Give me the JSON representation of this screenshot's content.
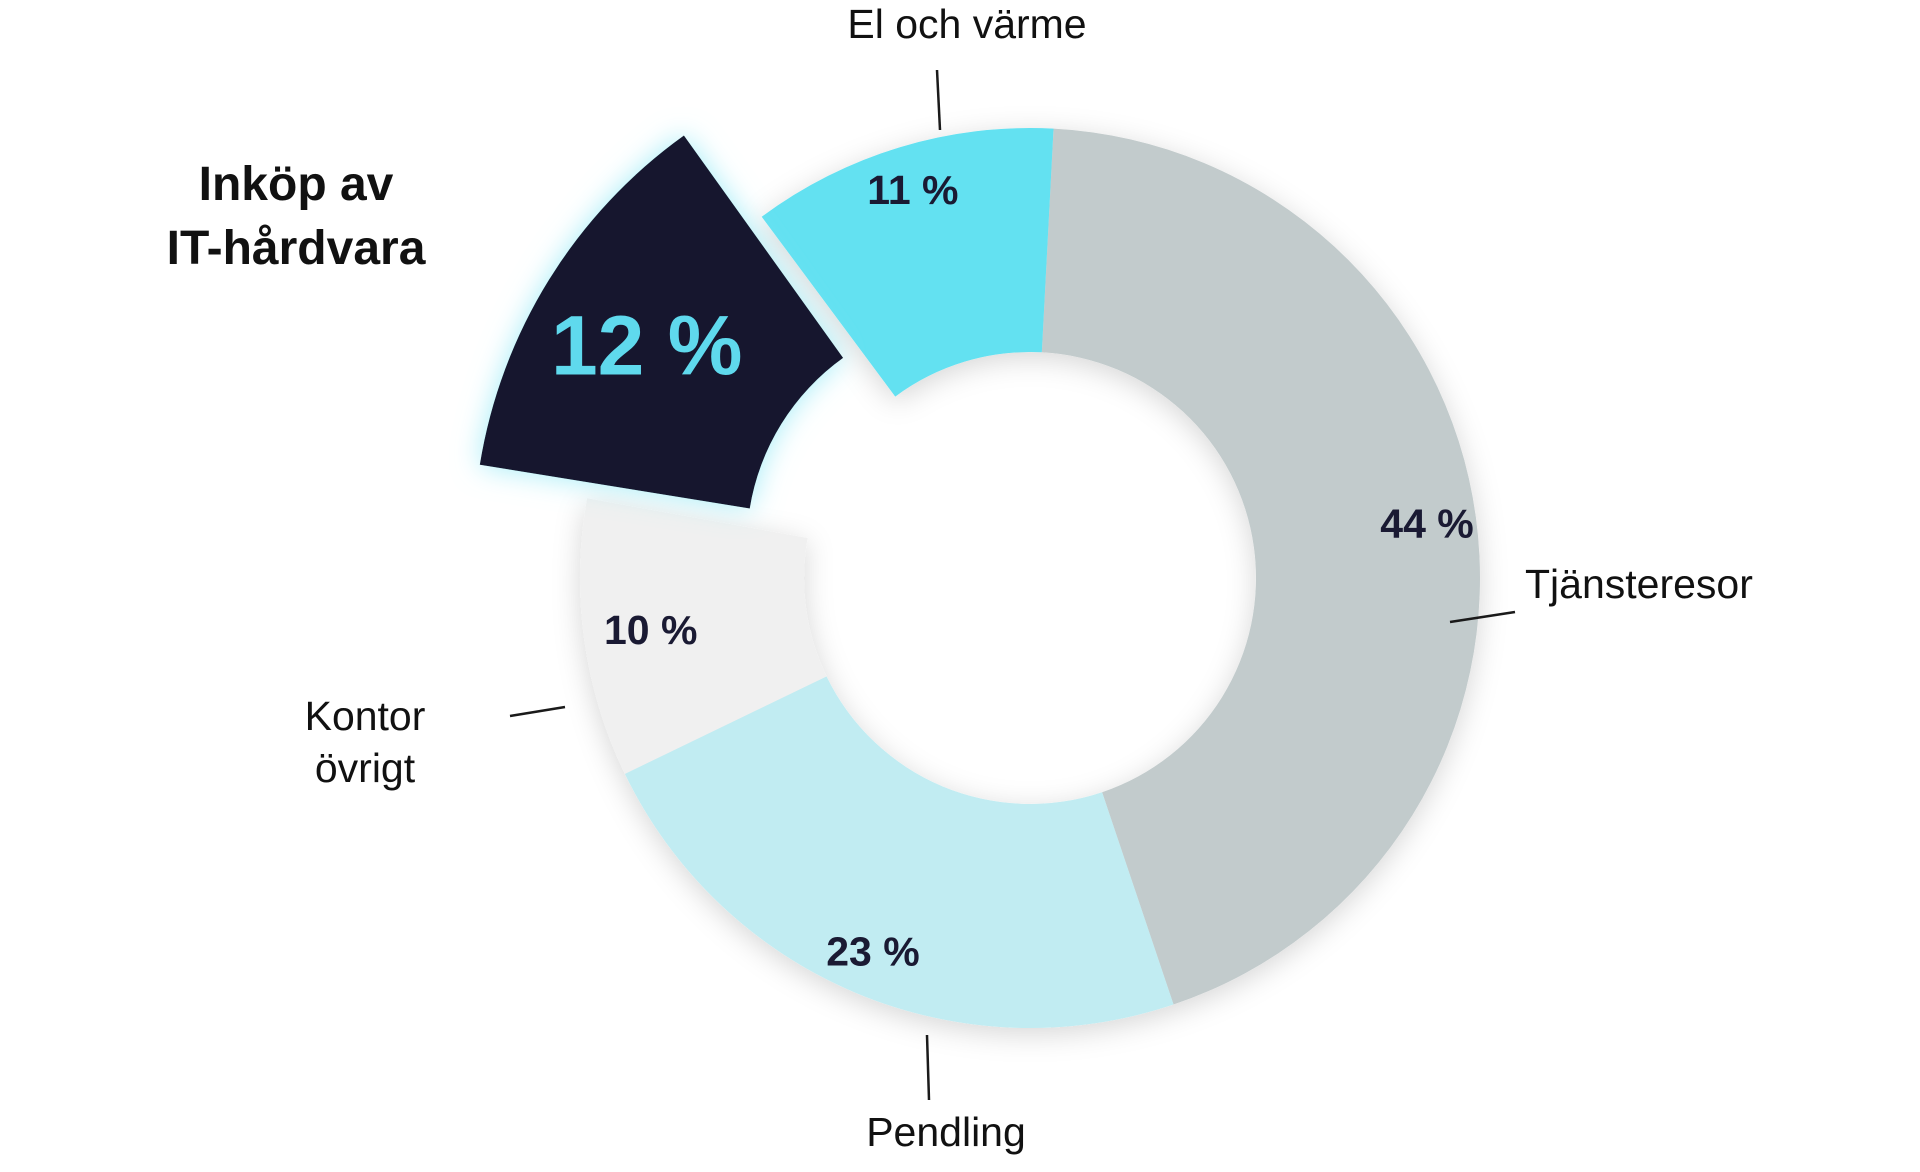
{
  "chart_data": {
    "type": "pie",
    "variant": "donut",
    "title": "",
    "slices": [
      {
        "name": "Tjänsteresor",
        "value": 44,
        "label": "44 %",
        "color": "#c2cbcc",
        "label_lines": [
          "Tjänsteresor"
        ]
      },
      {
        "name": "Pendling",
        "value": 23,
        "label": "23 %",
        "color": "#c1ecf2",
        "label_lines": [
          "Pendling"
        ]
      },
      {
        "name": "Kontor övrigt",
        "value": 10,
        "label": "10 %",
        "color": "#f0f0f0",
        "label_lines": [
          "Kontor",
          "övrigt"
        ]
      },
      {
        "name": "Inköp av IT-hårdvara",
        "value": 12,
        "label": "12 %",
        "color": "#18172d",
        "label_lines": [
          "Inköp av",
          "IT-hårdvara"
        ],
        "highlighted": true,
        "value_color": "#5fd9ed"
      },
      {
        "name": "El och värme",
        "value": 11,
        "label": "11 %",
        "color": "#63e1f1",
        "label_lines": [
          "El och värme"
        ]
      }
    ]
  }
}
